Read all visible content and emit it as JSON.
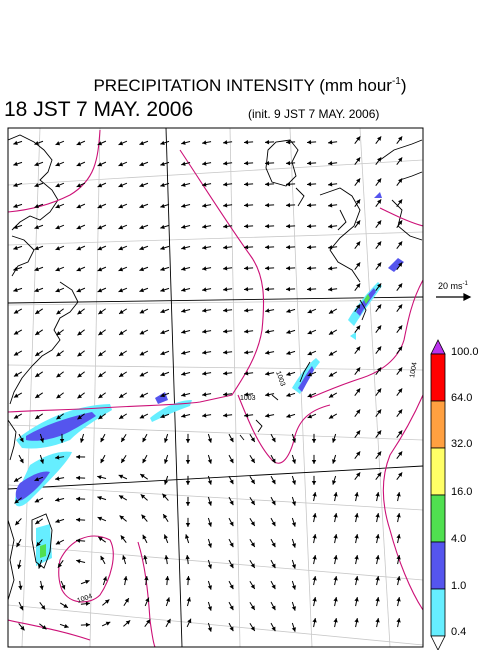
{
  "title": {
    "main": "PRECIPITATION INTENSITY (mm hour",
    "unit_exp": "-1",
    "close": ")"
  },
  "valid_time": "18 JST 7 MAY. 2006",
  "init_time": "(init. 9 JST 7 MAY. 2006)",
  "reference_vector": {
    "label": "20 ms",
    "exp": "-1"
  },
  "colorbar": {
    "labels": [
      "100.0",
      "64.0",
      "32.0",
      "16.0",
      "4.0",
      "1.0",
      "0.4"
    ],
    "colors": [
      "#ff0000",
      "#ffa040",
      "#ffff66",
      "#50e050",
      "#5555ee",
      "#66eeff"
    ],
    "overflow_color": "#bb33ee"
  },
  "isobars": {
    "color": "#cc1177",
    "labels": [
      "1003",
      "1003",
      "1004",
      "1004"
    ]
  },
  "precip_colors": {
    "light": "#66eeff",
    "moderate": "#5555ee",
    "heavy": "#50e050"
  }
}
